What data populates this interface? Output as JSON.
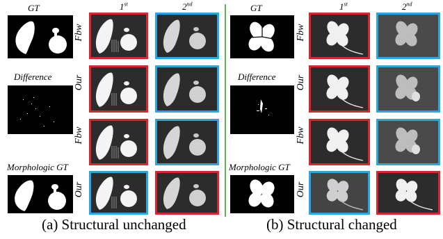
{
  "labels": {
    "gt": "GT",
    "difference": "Difference",
    "morphologic_gt": "Morphologic GT",
    "col_first": "1",
    "col_first_sup": "st",
    "col_second": "2",
    "col_second_sup": "nd"
  },
  "rows": {
    "left": [
      "Fbw",
      "Our",
      "Fbw",
      "Our"
    ],
    "right": [
      "Fbw",
      "Our",
      "Fbw",
      "Our"
    ]
  },
  "captions": {
    "left": "(a) Structural unchanged",
    "right": "(b) Structural changed"
  },
  "colors": {
    "highlight_red": "#d9262e",
    "highlight_blue": "#2aa6e0",
    "divider": "#5cb85c",
    "tile_bg": "#2c2c2c"
  }
}
